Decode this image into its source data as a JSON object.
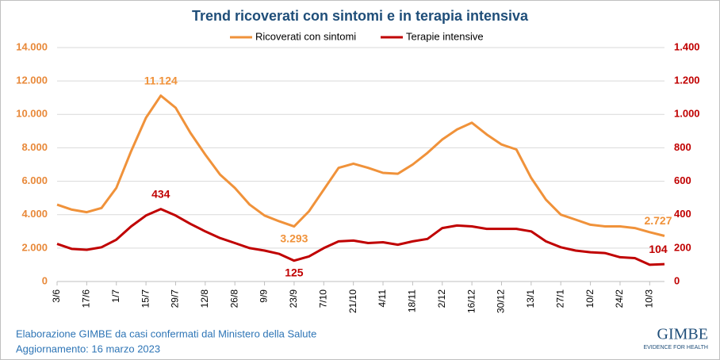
{
  "chart_data": {
    "type": "line",
    "title": "Trend ricoverati con sintomi e in terapia intensiva",
    "categories": [
      "3/6",
      null,
      "17/6",
      null,
      "1/7",
      null,
      "15/7",
      null,
      "29/7",
      null,
      "12/8",
      null,
      "26/8",
      null,
      "9/9",
      null,
      "23/9",
      null,
      "7/10",
      null,
      "21/10",
      null,
      "4/11",
      null,
      "18/11",
      null,
      "2/12",
      null,
      "16/12",
      null,
      "30/12",
      null,
      "13/1",
      null,
      "27/1",
      null,
      "10/2",
      null,
      "24/2",
      null,
      "10/3",
      null
    ],
    "series": [
      {
        "name": "Ricoverati con sintomi",
        "color": "#f0923a",
        "axis": "y",
        "values": [
          4600,
          4300,
          4150,
          4400,
          5600,
          7800,
          9800,
          11124,
          10400,
          8900,
          7600,
          6400,
          5600,
          4600,
          3950,
          3600,
          3293,
          4200,
          5500,
          6800,
          7050,
          6800,
          6500,
          6450,
          7000,
          7700,
          8500,
          9100,
          9500,
          8800,
          8200,
          7900,
          6200,
          4900,
          4000,
          3700,
          3400,
          3300,
          3300,
          3200,
          2950,
          2727
        ],
        "value_labels": [
          null,
          null,
          null,
          null,
          null,
          null,
          null,
          "11.124",
          null,
          null,
          null,
          null,
          null,
          null,
          null,
          null,
          "3.293",
          null,
          null,
          null,
          null,
          null,
          null,
          null,
          null,
          null,
          null,
          null,
          null,
          null,
          null,
          null,
          null,
          null,
          null,
          null,
          null,
          null,
          null,
          null,
          null,
          "2.727"
        ]
      },
      {
        "name": "Terapie intensive",
        "color": "#c00000",
        "axis": "y2",
        "values": [
          225,
          195,
          190,
          205,
          250,
          330,
          395,
          434,
          395,
          345,
          300,
          260,
          230,
          200,
          185,
          165,
          125,
          150,
          200,
          240,
          245,
          230,
          235,
          220,
          240,
          255,
          320,
          335,
          330,
          315,
          315,
          315,
          300,
          240,
          205,
          185,
          175,
          170,
          145,
          140,
          100,
          104
        ],
        "value_labels": [
          null,
          null,
          null,
          null,
          null,
          null,
          null,
          "434",
          null,
          null,
          null,
          null,
          null,
          null,
          null,
          null,
          "125",
          null,
          null,
          null,
          null,
          null,
          null,
          null,
          null,
          null,
          null,
          null,
          null,
          null,
          null,
          null,
          null,
          null,
          null,
          null,
          null,
          null,
          null,
          null,
          null,
          "104"
        ]
      }
    ],
    "ylim": [
      0,
      14000
    ],
    "yticks": [
      0,
      {
        "value": 2000,
        "label": "2.000"
      },
      {
        "value": 4000,
        "label": "4.000"
      },
      {
        "value": 6000,
        "label": "6.000"
      },
      {
        "value": 8000,
        "label": "8.000"
      },
      {
        "value": 10000,
        "label": "10.000"
      },
      {
        "value": 12000,
        "label": "12.000"
      },
      {
        "value": 14000,
        "label": "14.000"
      }
    ],
    "y2lim": [
      0,
      1400
    ],
    "y2ticks": [
      0,
      200,
      400,
      600,
      800,
      {
        "value": 1000,
        "label": "1.000"
      },
      {
        "value": 1200,
        "label": "1.200"
      },
      {
        "value": 1400,
        "label": "1.400"
      }
    ],
    "grid": true,
    "legend": "top",
    "source": "Elaborazione GIMBE da casi confermati dal Ministero della Salute",
    "updated": "Aggiornamento: 16 marzo 2023",
    "logo": "GIMBE",
    "logo_tagline": "EVIDENCE FOR HEALTH"
  }
}
